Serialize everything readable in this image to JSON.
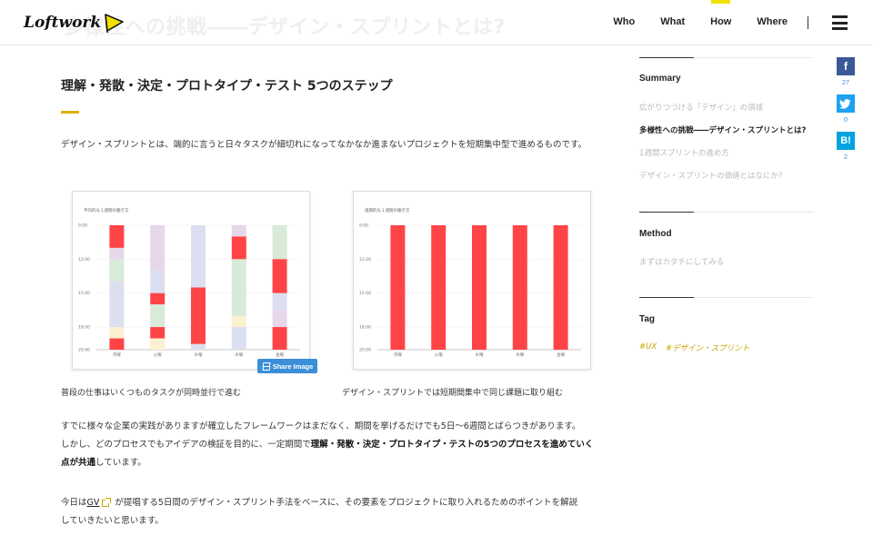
{
  "header": {
    "logo_text": "Loftwork",
    "ghost_title": "多様性への挑戦――デザイン・スプリントとは?",
    "nav": [
      {
        "label": "Who"
      },
      {
        "label": "What"
      },
      {
        "label": "How",
        "active": true
      },
      {
        "label": "Where"
      }
    ],
    "accent_color": "#f2e100"
  },
  "article": {
    "section_title": "理解・発散・決定・プロトタイプ・テスト 5つのステップ",
    "lead": "デザイン・スプリントとは、端的に言うと日々タスクが細切れになってなかなか進まないプロジェクトを短期集中型で進めるものです。",
    "figure1": {
      "caption": "普段の仕事はいくつものタスクが同時並行で進む",
      "chart_title": "平均的な１週間の働き方",
      "share_label": "Share Image"
    },
    "figure2": {
      "caption": "デザイン・スプリントでは短期間集中で同じ課題に取り組む",
      "chart_title": "週期的な１週間の働き方"
    },
    "para1": {
      "line1": "すでに様々な企業の実践がありますが確立したフレームワークはまだなく、期間を挙げるだけでも5日〜6週間とばらつきがあります。",
      "line2_prefix": "しかし、どのプロセスでもアイデアの検証を目的に、一定期間で",
      "line2_bold": "理解・発散・決定・プロトタイプ・テストの5つのプロセスを進めていく",
      "line3_bold": "点が共通",
      "line3_suffix": "しています。"
    },
    "para2": {
      "prefix": "今日は",
      "link": "GV",
      "suffix": "が提唱する5日間のデザイン・スプリント手法をベースに、その要素をプロジェクトに取り入れるためのポイントを解説",
      "line2": "していきたいと思います。"
    }
  },
  "chart_data": [
    {
      "type": "bar",
      "title": "平均的な１週間の働き方",
      "categories": [
        "月曜",
        "火曜",
        "水曜",
        "木曜",
        "金曜"
      ],
      "y_ticks": [
        "9:00",
        "12:00",
        "15:00",
        "18:00",
        "20:00"
      ],
      "ylim": [
        9,
        20
      ],
      "stacked": true,
      "colors": {
        "red": "#ff4448",
        "lavender": "#dcdff0",
        "mint": "#d8ead8",
        "cream": "#fbf0d0",
        "purple": "#e6d8ea"
      },
      "segments": [
        [
          [
            "red",
            9,
            11
          ],
          [
            "purple",
            11,
            12
          ],
          [
            "mint",
            12,
            14
          ],
          [
            "lavender",
            14,
            18
          ],
          [
            "cream",
            18,
            19
          ],
          [
            "red",
            19,
            20
          ]
        ],
        [
          [
            "purple",
            9,
            13
          ],
          [
            "lavender",
            13,
            15
          ],
          [
            "red",
            15,
            16
          ],
          [
            "mint",
            16,
            18
          ],
          [
            "red",
            18,
            19
          ],
          [
            "cream",
            19,
            20
          ]
        ],
        [
          [
            "lavender",
            9,
            14.5
          ],
          [
            "red",
            14.5,
            19.5
          ],
          [
            "lavender",
            19.5,
            20
          ]
        ],
        [
          [
            "purple",
            9,
            10
          ],
          [
            "red",
            10,
            12
          ],
          [
            "mint",
            12,
            17
          ],
          [
            "cream",
            17,
            18
          ],
          [
            "lavender",
            18,
            20
          ]
        ],
        [
          [
            "mint",
            9,
            12
          ],
          [
            "red",
            12,
            15
          ],
          [
            "lavender",
            15,
            16.5
          ],
          [
            "purple",
            16.5,
            18
          ],
          [
            "red",
            18,
            20
          ]
        ]
      ]
    },
    {
      "type": "bar",
      "title": "週期的な１週間の働き方",
      "categories": [
        "月曜",
        "火曜",
        "水曜",
        "木曜",
        "金曜"
      ],
      "y_ticks": [
        "9:00",
        "12:00",
        "15:00",
        "18:00",
        "20:00"
      ],
      "ylim": [
        9,
        20
      ],
      "stacked": true,
      "colors": {
        "red": "#ff4448"
      },
      "segments": [
        [
          [
            "red",
            9,
            20
          ]
        ],
        [
          [
            "red",
            9,
            20
          ]
        ],
        [
          [
            "red",
            9,
            20
          ]
        ],
        [
          [
            "red",
            9,
            20
          ]
        ],
        [
          [
            "red",
            9,
            20
          ]
        ]
      ]
    }
  ],
  "sidebar": {
    "summary_heading": "Summary",
    "summary_items": [
      {
        "label": "広がりつづける「デザイン」の領域"
      },
      {
        "label": "多様性への挑戦――デザイン・スプリントとは?",
        "active": true
      },
      {
        "label": "1週間スプリントの進め方"
      },
      {
        "label": "デザイン・スプリントの価値とはなにか?"
      }
    ],
    "method_heading": "Method",
    "method_items": [
      {
        "label": "まずはカタチにしてみる"
      }
    ],
    "tag_heading": "Tag",
    "tags": [
      "#UX",
      "#デザイン・スプリント"
    ]
  },
  "social": [
    {
      "icon": "facebook-icon",
      "glyph": "f",
      "count": "27",
      "color": "#3b5998"
    },
    {
      "icon": "twitter-icon",
      "glyph": "t",
      "count": "0",
      "color": "#1da1f2"
    },
    {
      "icon": "hatena-bookmark-icon",
      "glyph": "B!",
      "count": "2",
      "color": "#00a4de"
    }
  ]
}
